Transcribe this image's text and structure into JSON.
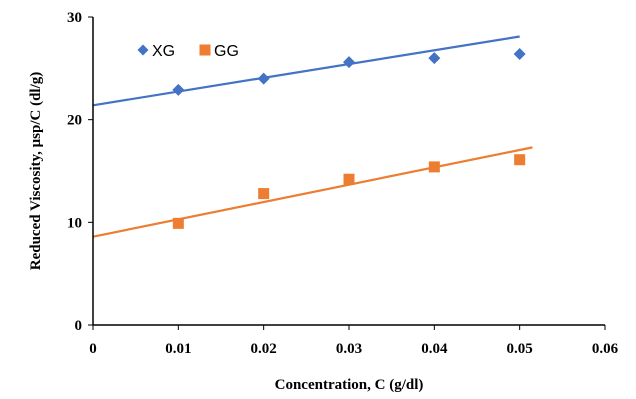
{
  "chart_data": {
    "type": "scatter",
    "xlabel": "Concentration, C (g/dl)",
    "ylabel": "Reduced Viscosity, μsp/C (dl/g)",
    "xlim": [
      0,
      0.06
    ],
    "ylim": [
      0,
      30
    ],
    "x_ticks": [
      0,
      0.01,
      0.02,
      0.03,
      0.04,
      0.05,
      0.06
    ],
    "y_ticks": [
      0,
      10,
      20,
      30
    ],
    "x_tick_labels": [
      "0",
      "0.01",
      "0.02",
      "0.03",
      "0.04",
      "0.05",
      "0.06"
    ],
    "y_tick_labels": [
      "0",
      "10",
      "20",
      "30"
    ],
    "grid": false,
    "legend_position": "top-left",
    "series": [
      {
        "name": "XG",
        "marker": "diamond",
        "color": "#4472C4",
        "x": [
          0.01,
          0.02,
          0.03,
          0.04,
          0.05
        ],
        "y": [
          22.9,
          24.0,
          25.6,
          26.0,
          26.4
        ],
        "trendline": {
          "x": [
            0,
            0.05
          ],
          "y": [
            21.4,
            28.1
          ]
        }
      },
      {
        "name": "GG",
        "marker": "square",
        "color": "#ED7D31",
        "x": [
          0.01,
          0.02,
          0.03,
          0.04,
          0.05
        ],
        "y": [
          9.9,
          12.8,
          14.2,
          15.4,
          16.1
        ],
        "trendline": {
          "x": [
            0,
            0.0515
          ],
          "y": [
            8.6,
            17.3
          ]
        }
      }
    ]
  }
}
